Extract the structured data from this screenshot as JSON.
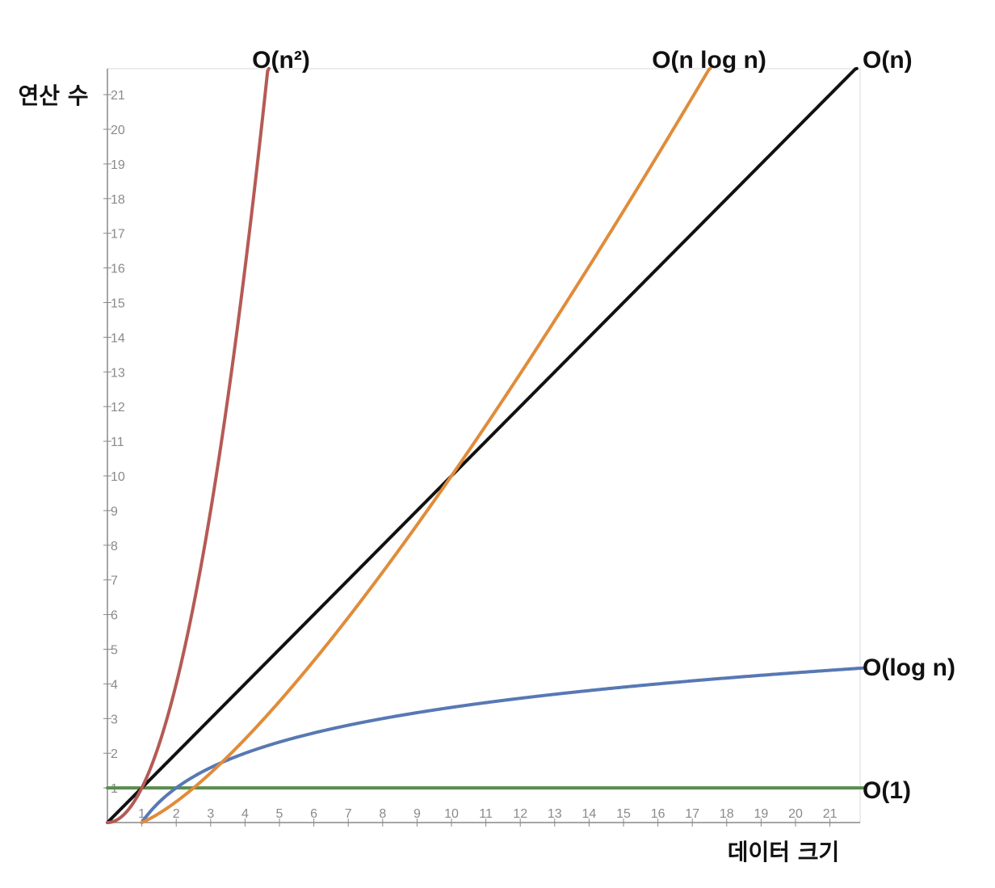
{
  "chart_data": {
    "type": "line",
    "xlabel": "데이터 크기",
    "ylabel": "연산 수",
    "xlim": [
      0,
      22
    ],
    "ylim": [
      0,
      22
    ],
    "x_ticks": [
      "1",
      "2",
      "3",
      "4",
      "5",
      "6",
      "7",
      "8",
      "9",
      "10",
      "11",
      "12",
      "13",
      "14",
      "15",
      "16",
      "17",
      "18",
      "19",
      "20",
      "21"
    ],
    "y_ticks": [
      "1",
      "2",
      "3",
      "4",
      "5",
      "6",
      "7",
      "8",
      "9",
      "10",
      "11",
      "12",
      "13",
      "14",
      "15",
      "16",
      "17",
      "18",
      "19",
      "20",
      "21"
    ],
    "grid": false,
    "series": [
      {
        "name": "O(1)",
        "color": "#5b8c4e",
        "formula": "1"
      },
      {
        "name": "O(log n)",
        "color": "#5878b4",
        "formula": "log2(n)"
      },
      {
        "name": "O(n)",
        "color": "#111111",
        "formula": "n"
      },
      {
        "name": "O(n log n)",
        "color": "#e08c3a",
        "formula": "n*log2(n)/log2(10)"
      },
      {
        "name": "O(n²)",
        "color": "#b55a55",
        "formula": "n^2"
      }
    ]
  }
}
